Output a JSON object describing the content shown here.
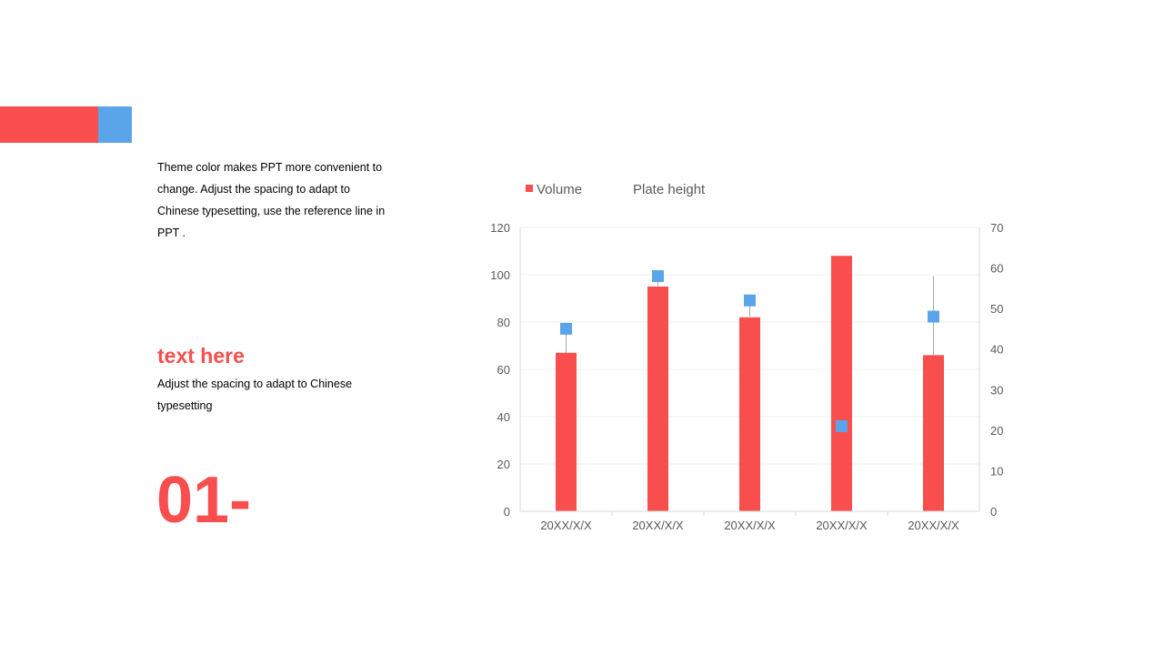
{
  "slide": {
    "intro_text": "Theme color makes PPT more convenient  to change. Adjust the spacing to adapt to Chinese  typesetting, use the reference line in PPT .",
    "subheading": "text here",
    "subtext": "Adjust the spacing to adapt to Chinese typesetting",
    "number": "01-"
  },
  "colors": {
    "red": "#f94e4e",
    "blue": "#5aa5ea",
    "axis_text": "#595959",
    "grid": "#efefef"
  },
  "chart_data": {
    "type": "bar",
    "categories": [
      "20XX/X/X",
      "20XX/X/X",
      "20XX/X/X",
      "20XX/X/X",
      "20XX/X/X"
    ],
    "series": [
      {
        "name": "Volume",
        "type": "bar",
        "axis": "left",
        "values": [
          67,
          95,
          82,
          108,
          66
        ]
      },
      {
        "name": "Plate height",
        "type": "scatter",
        "axis": "right",
        "values": [
          45,
          58,
          52,
          21,
          48
        ]
      }
    ],
    "high_low_lines": [
      {
        "from": 39,
        "to": 45
      },
      {
        "from": 55.5,
        "to": 58
      },
      {
        "from": 48,
        "to": 52
      },
      {
        "from": 63,
        "to": 63
      },
      {
        "from": 38.5,
        "to": 58
      }
    ],
    "y_left": {
      "min": 0,
      "max": 120,
      "ticks": [
        0,
        20,
        40,
        60,
        80,
        100,
        120
      ]
    },
    "y_right": {
      "min": 0,
      "max": 70,
      "ticks": [
        0,
        10,
        20,
        30,
        40,
        50,
        60,
        70
      ]
    },
    "legend_position": "top-left",
    "grid": true
  }
}
